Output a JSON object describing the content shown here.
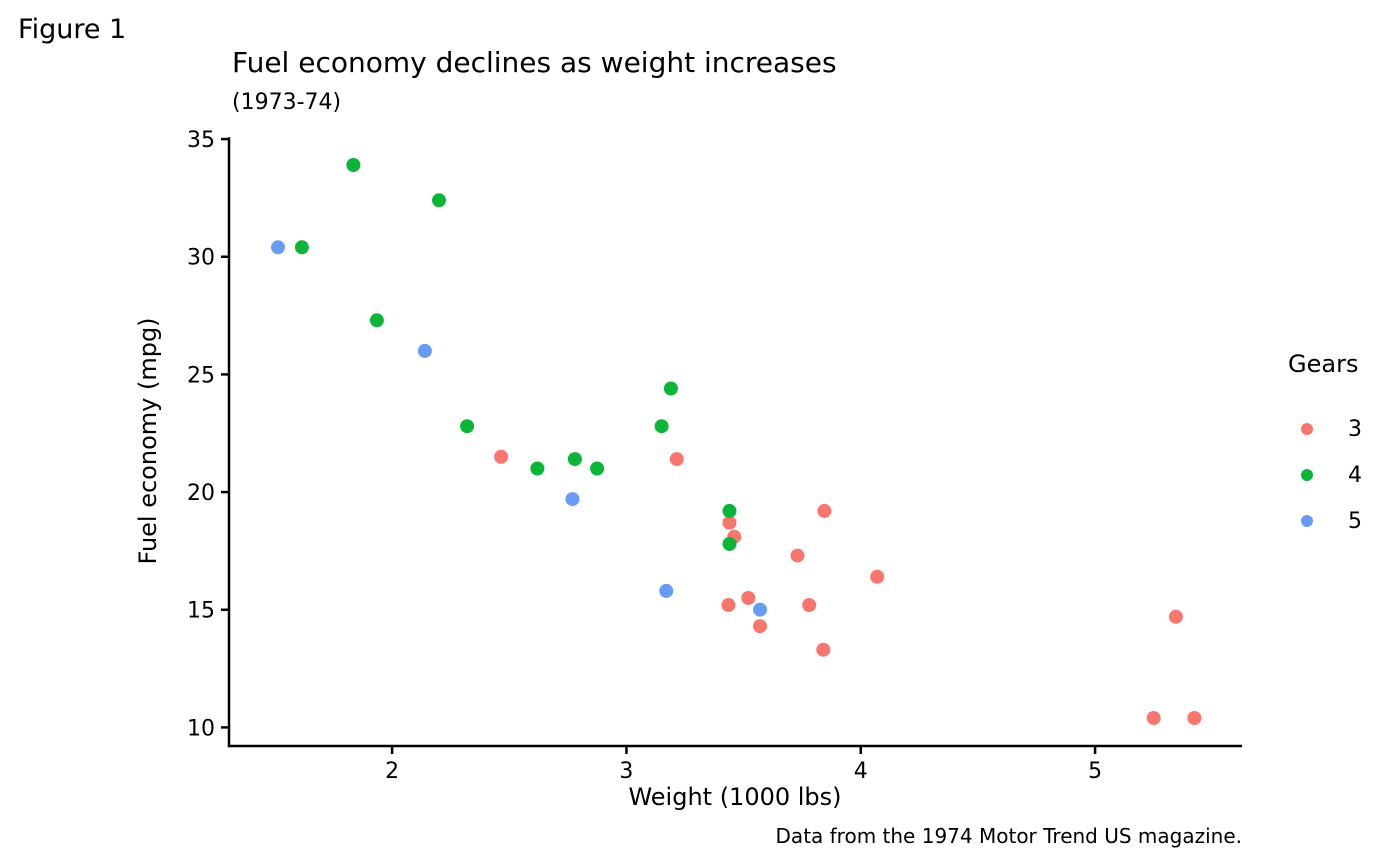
{
  "figure_label": "Figure 1",
  "chart_data": {
    "type": "scatter",
    "title": "Fuel economy declines as weight increases",
    "subtitle": "(1973-74)",
    "xlabel": "Weight (1000 lbs)",
    "ylabel": "Fuel economy (mpg)",
    "caption": "Data from the 1974 Motor Trend US magazine.",
    "legend": {
      "title": "Gears",
      "position": "right"
    },
    "x_ticks": [
      2,
      3,
      4,
      5
    ],
    "y_ticks": [
      10,
      15,
      20,
      25,
      30,
      35
    ],
    "x_range": [
      1.304,
      5.627
    ],
    "y_range": [
      9.21,
      35.08
    ],
    "grid": false,
    "axis_color": "#000000",
    "series": [
      {
        "name": "3",
        "color": "#F8766D",
        "points": [
          [
            3.215,
            21.4
          ],
          [
            3.44,
            18.7
          ],
          [
            3.46,
            18.1
          ],
          [
            3.57,
            14.3
          ],
          [
            4.07,
            16.4
          ],
          [
            3.73,
            17.3
          ],
          [
            3.78,
            15.2
          ],
          [
            5.25,
            10.4
          ],
          [
            5.424,
            10.4
          ],
          [
            5.345,
            14.7
          ],
          [
            2.465,
            21.5
          ],
          [
            3.52,
            15.5
          ],
          [
            3.435,
            15.2
          ],
          [
            3.84,
            13.3
          ],
          [
            3.845,
            19.2
          ]
        ]
      },
      {
        "name": "4",
        "color": "#0BB538",
        "points": [
          [
            2.62,
            21.0
          ],
          [
            2.875,
            21.0
          ],
          [
            2.32,
            22.8
          ],
          [
            3.19,
            24.4
          ],
          [
            3.15,
            22.8
          ],
          [
            3.44,
            19.2
          ],
          [
            3.44,
            17.8
          ],
          [
            2.2,
            32.4
          ],
          [
            1.615,
            30.4
          ],
          [
            1.835,
            33.9
          ],
          [
            1.935,
            27.3
          ],
          [
            2.78,
            21.4
          ]
        ]
      },
      {
        "name": "5",
        "color": "#679CF4",
        "points": [
          [
            2.14,
            26.0
          ],
          [
            1.513,
            30.4
          ],
          [
            3.17,
            15.8
          ],
          [
            2.77,
            19.7
          ],
          [
            3.57,
            15.0
          ]
        ]
      }
    ]
  }
}
